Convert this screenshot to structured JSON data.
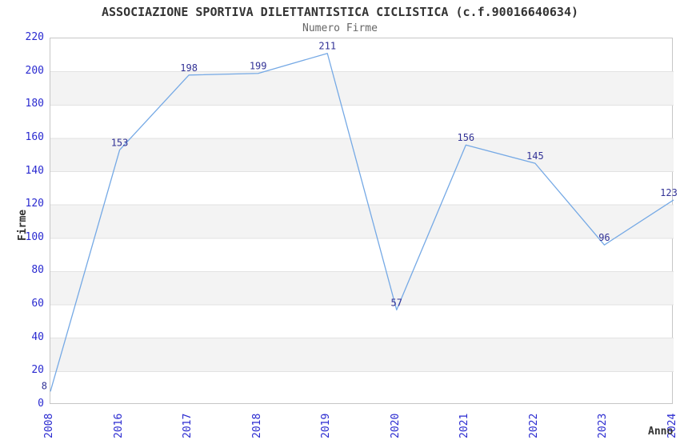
{
  "chart_data": {
    "type": "line",
    "title": "ASSOCIAZIONE SPORTIVA DILETTANTISTICA CICLISTICA (c.f.90016640634)",
    "subtitle": "Numero Firme",
    "xlabel": "Anno",
    "ylabel": "Firme",
    "categories": [
      "2008",
      "2016",
      "2017",
      "2018",
      "2019",
      "2020",
      "2021",
      "2022",
      "2023",
      "2024"
    ],
    "series": [
      {
        "name": "Numero Firme",
        "values": [
          8,
          153,
          198,
          199,
          211,
          57,
          156,
          145,
          96,
          123
        ]
      }
    ],
    "point_labels": [
      "8",
      "153",
      "198",
      "199",
      "211",
      "57",
      "156",
      "145",
      "96",
      "123"
    ],
    "ylim": [
      0,
      220
    ],
    "ytick_step": 20,
    "yticks": [
      0,
      20,
      40,
      60,
      80,
      100,
      120,
      140,
      160,
      180,
      200,
      220
    ],
    "grid": "horizontal gridlines with alternating shaded bands",
    "legend": "none",
    "colors": {
      "line": "#75a9e5",
      "point_label": "#323296",
      "tick_label": "#2a2ad0",
      "band_fill": "#f3f3f3",
      "grid_line": "#e2e2e2",
      "plot_border": "#c6c6c6",
      "title": "#333333",
      "subtitle": "#666666",
      "axis_title": "#333333",
      "background": "#ffffff"
    }
  }
}
